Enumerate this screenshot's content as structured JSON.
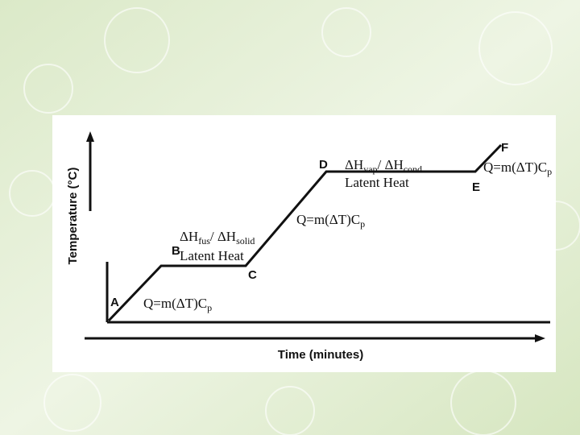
{
  "y_axis_label": "Temperature (°C)",
  "x_axis_label": "Time (minutes)",
  "points": [
    "A",
    "B",
    "C",
    "D",
    "E",
    "F"
  ],
  "annotations": [
    {
      "parts": [
        {
          "text": "ΔH"
        },
        {
          "sub": "vap"
        },
        {
          "text": "/ ΔH"
        },
        {
          "sub": "cond"
        }
      ]
    },
    {
      "parts": [
        {
          "text": "Latent Heat"
        }
      ]
    },
    {
      "parts": [
        {
          "text": "Q=m(ΔT)C"
        },
        {
          "sub": "p"
        }
      ]
    },
    {
      "parts": [
        {
          "text": "ΔH"
        },
        {
          "sub": "fus"
        },
        {
          "text": "/ ΔH"
        },
        {
          "sub": "solid"
        }
      ]
    },
    {
      "parts": [
        {
          "text": "Latent Heat"
        }
      ]
    },
    {
      "parts": [
        {
          "text": "Q=m(ΔT)C"
        },
        {
          "sub": "p"
        }
      ]
    },
    {
      "parts": [
        {
          "text": "Q=m(ΔT)C"
        },
        {
          "sub": "p"
        }
      ]
    }
  ]
}
